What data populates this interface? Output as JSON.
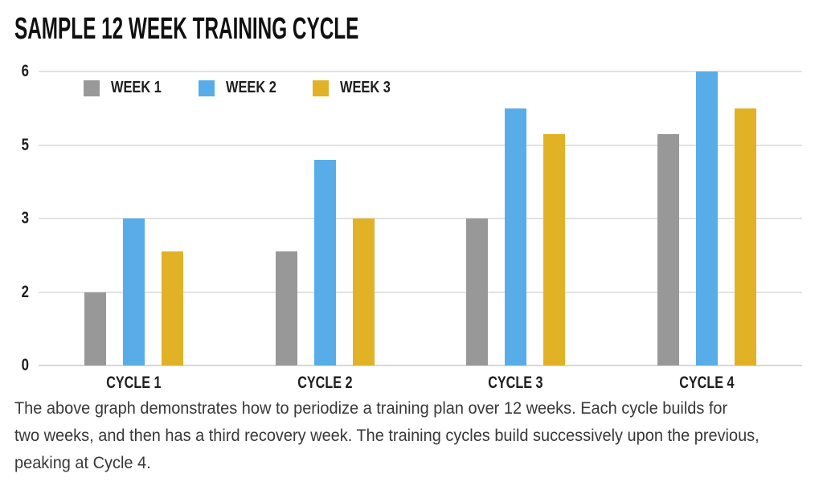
{
  "title": {
    "text": "SAMPLE 12 WEEK TRAINING CYCLE"
  },
  "chart_data": {
    "type": "bar",
    "title": "SAMPLE 12 WEEK TRAINING CYCLE",
    "categories": [
      "CYCLE 1",
      "CYCLE 2",
      "CYCLE 3",
      "CYCLE 4"
    ],
    "series": [
      {
        "name": "WEEK 1",
        "color": "#989898",
        "values": [
          2,
          2.55,
          3,
          5.15
        ]
      },
      {
        "name": "WEEK 2",
        "color": "#58ADE8",
        "values": [
          3,
          4.6,
          5.5,
          6
        ]
      },
      {
        "name": "WEEK 3",
        "color": "#E2B226",
        "values": [
          2.55,
          3,
          5.15,
          5.5
        ]
      }
    ],
    "y_axis": {
      "ticks": [
        0,
        2,
        3,
        5,
        6
      ],
      "tick_labels": [
        "0",
        "2",
        "3",
        "5",
        "6"
      ],
      "tick_spacing": "equal",
      "min": 0,
      "max": 6
    },
    "grid": true,
    "legend_position": "top-left-inside",
    "colors": {
      "gridline": "#E2E2E2",
      "axis_line": "#D8D8D8",
      "axis_text": "#1F1E1E",
      "title_text": "#101010",
      "caption_text": "#383838",
      "background": "#FFFFFF"
    }
  },
  "caption": {
    "lines": [
      "The above graph demonstrates how to periodize a training plan over 12 weeks. Each cycle builds for",
      "two weeks, and then has a third recovery week. The training cycles build successively upon the previous,",
      "peaking at Cycle 4."
    ]
  }
}
